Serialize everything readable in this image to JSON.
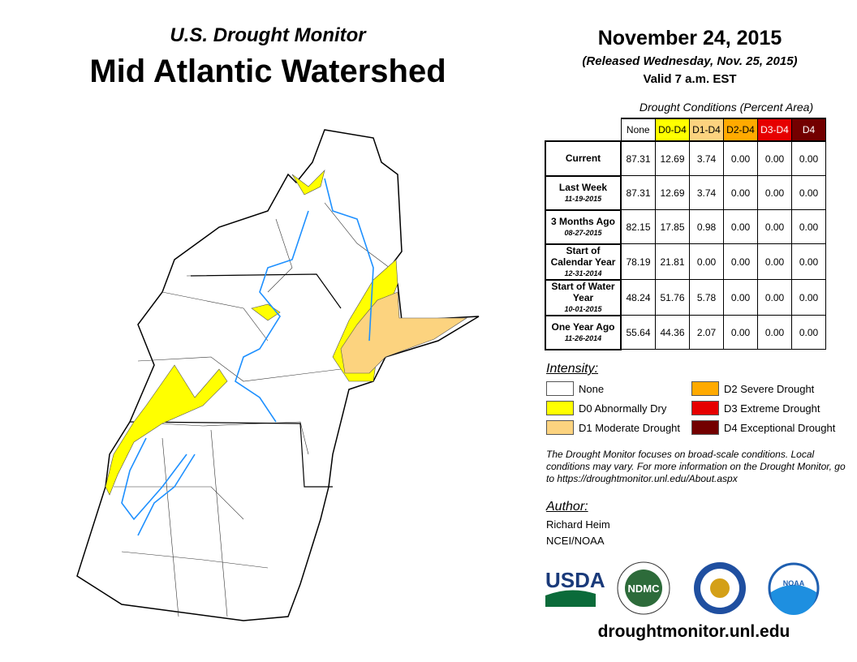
{
  "header": {
    "product": "U.S. Drought Monitor",
    "region": "Mid Atlantic Watershed",
    "date": "November 24, 2015",
    "released": "(Released Wednesday, Nov. 25, 2015)",
    "valid": "Valid 7 a.m. EST"
  },
  "table": {
    "caption": "Drought Conditions (Percent Area)",
    "columns": [
      "None",
      "D0-D4",
      "D1-D4",
      "D2-D4",
      "D3-D4",
      "D4"
    ],
    "column_colors": [
      "#ffffff",
      "#ffff00",
      "#fcd37f",
      "#ffaa00",
      "#e60000",
      "#730000"
    ],
    "rows": [
      {
        "label": "Current",
        "date": "",
        "values": [
          "87.31",
          "12.69",
          "3.74",
          "0.00",
          "0.00",
          "0.00"
        ]
      },
      {
        "label": "Last Week",
        "date": "11-19-2015",
        "values": [
          "87.31",
          "12.69",
          "3.74",
          "0.00",
          "0.00",
          "0.00"
        ]
      },
      {
        "label": "3 Months Ago",
        "date": "08-27-2015",
        "values": [
          "82.15",
          "17.85",
          "0.98",
          "0.00",
          "0.00",
          "0.00"
        ]
      },
      {
        "label": "Start of Calendar Year",
        "date": "12-31-2014",
        "values": [
          "78.19",
          "21.81",
          "0.00",
          "0.00",
          "0.00",
          "0.00"
        ]
      },
      {
        "label": "Start of Water Year",
        "date": "10-01-2015",
        "values": [
          "48.24",
          "51.76",
          "5.78",
          "0.00",
          "0.00",
          "0.00"
        ]
      },
      {
        "label": "One Year Ago",
        "date": "11-26-2014",
        "values": [
          "55.64",
          "44.36",
          "2.07",
          "0.00",
          "0.00",
          "0.00"
        ]
      }
    ]
  },
  "legend": {
    "title": "Intensity:",
    "items": [
      {
        "label": "None",
        "color": "#ffffff"
      },
      {
        "label": "D0 Abnormally Dry",
        "color": "#ffff00"
      },
      {
        "label": "D1 Moderate Drought",
        "color": "#fcd37f"
      },
      {
        "label": "D2 Severe Drought",
        "color": "#ffaa00"
      },
      {
        "label": "D3 Extreme Drought",
        "color": "#e60000"
      },
      {
        "label": "D4 Exceptional Drought",
        "color": "#730000"
      }
    ]
  },
  "note": "The Drought Monitor focuses on broad-scale conditions. Local conditions may vary. For more information on the Drought Monitor, go to https://droughtmonitor.unl.edu/About.aspx",
  "author": {
    "title": "Author:",
    "name": "Richard Heim",
    "org": "NCEI/NOAA"
  },
  "logos": [
    "USDA",
    "NDMC",
    "U.S. Department of Commerce",
    "NOAA"
  ],
  "footer_url": "droughtmonitor.unl.edu"
}
